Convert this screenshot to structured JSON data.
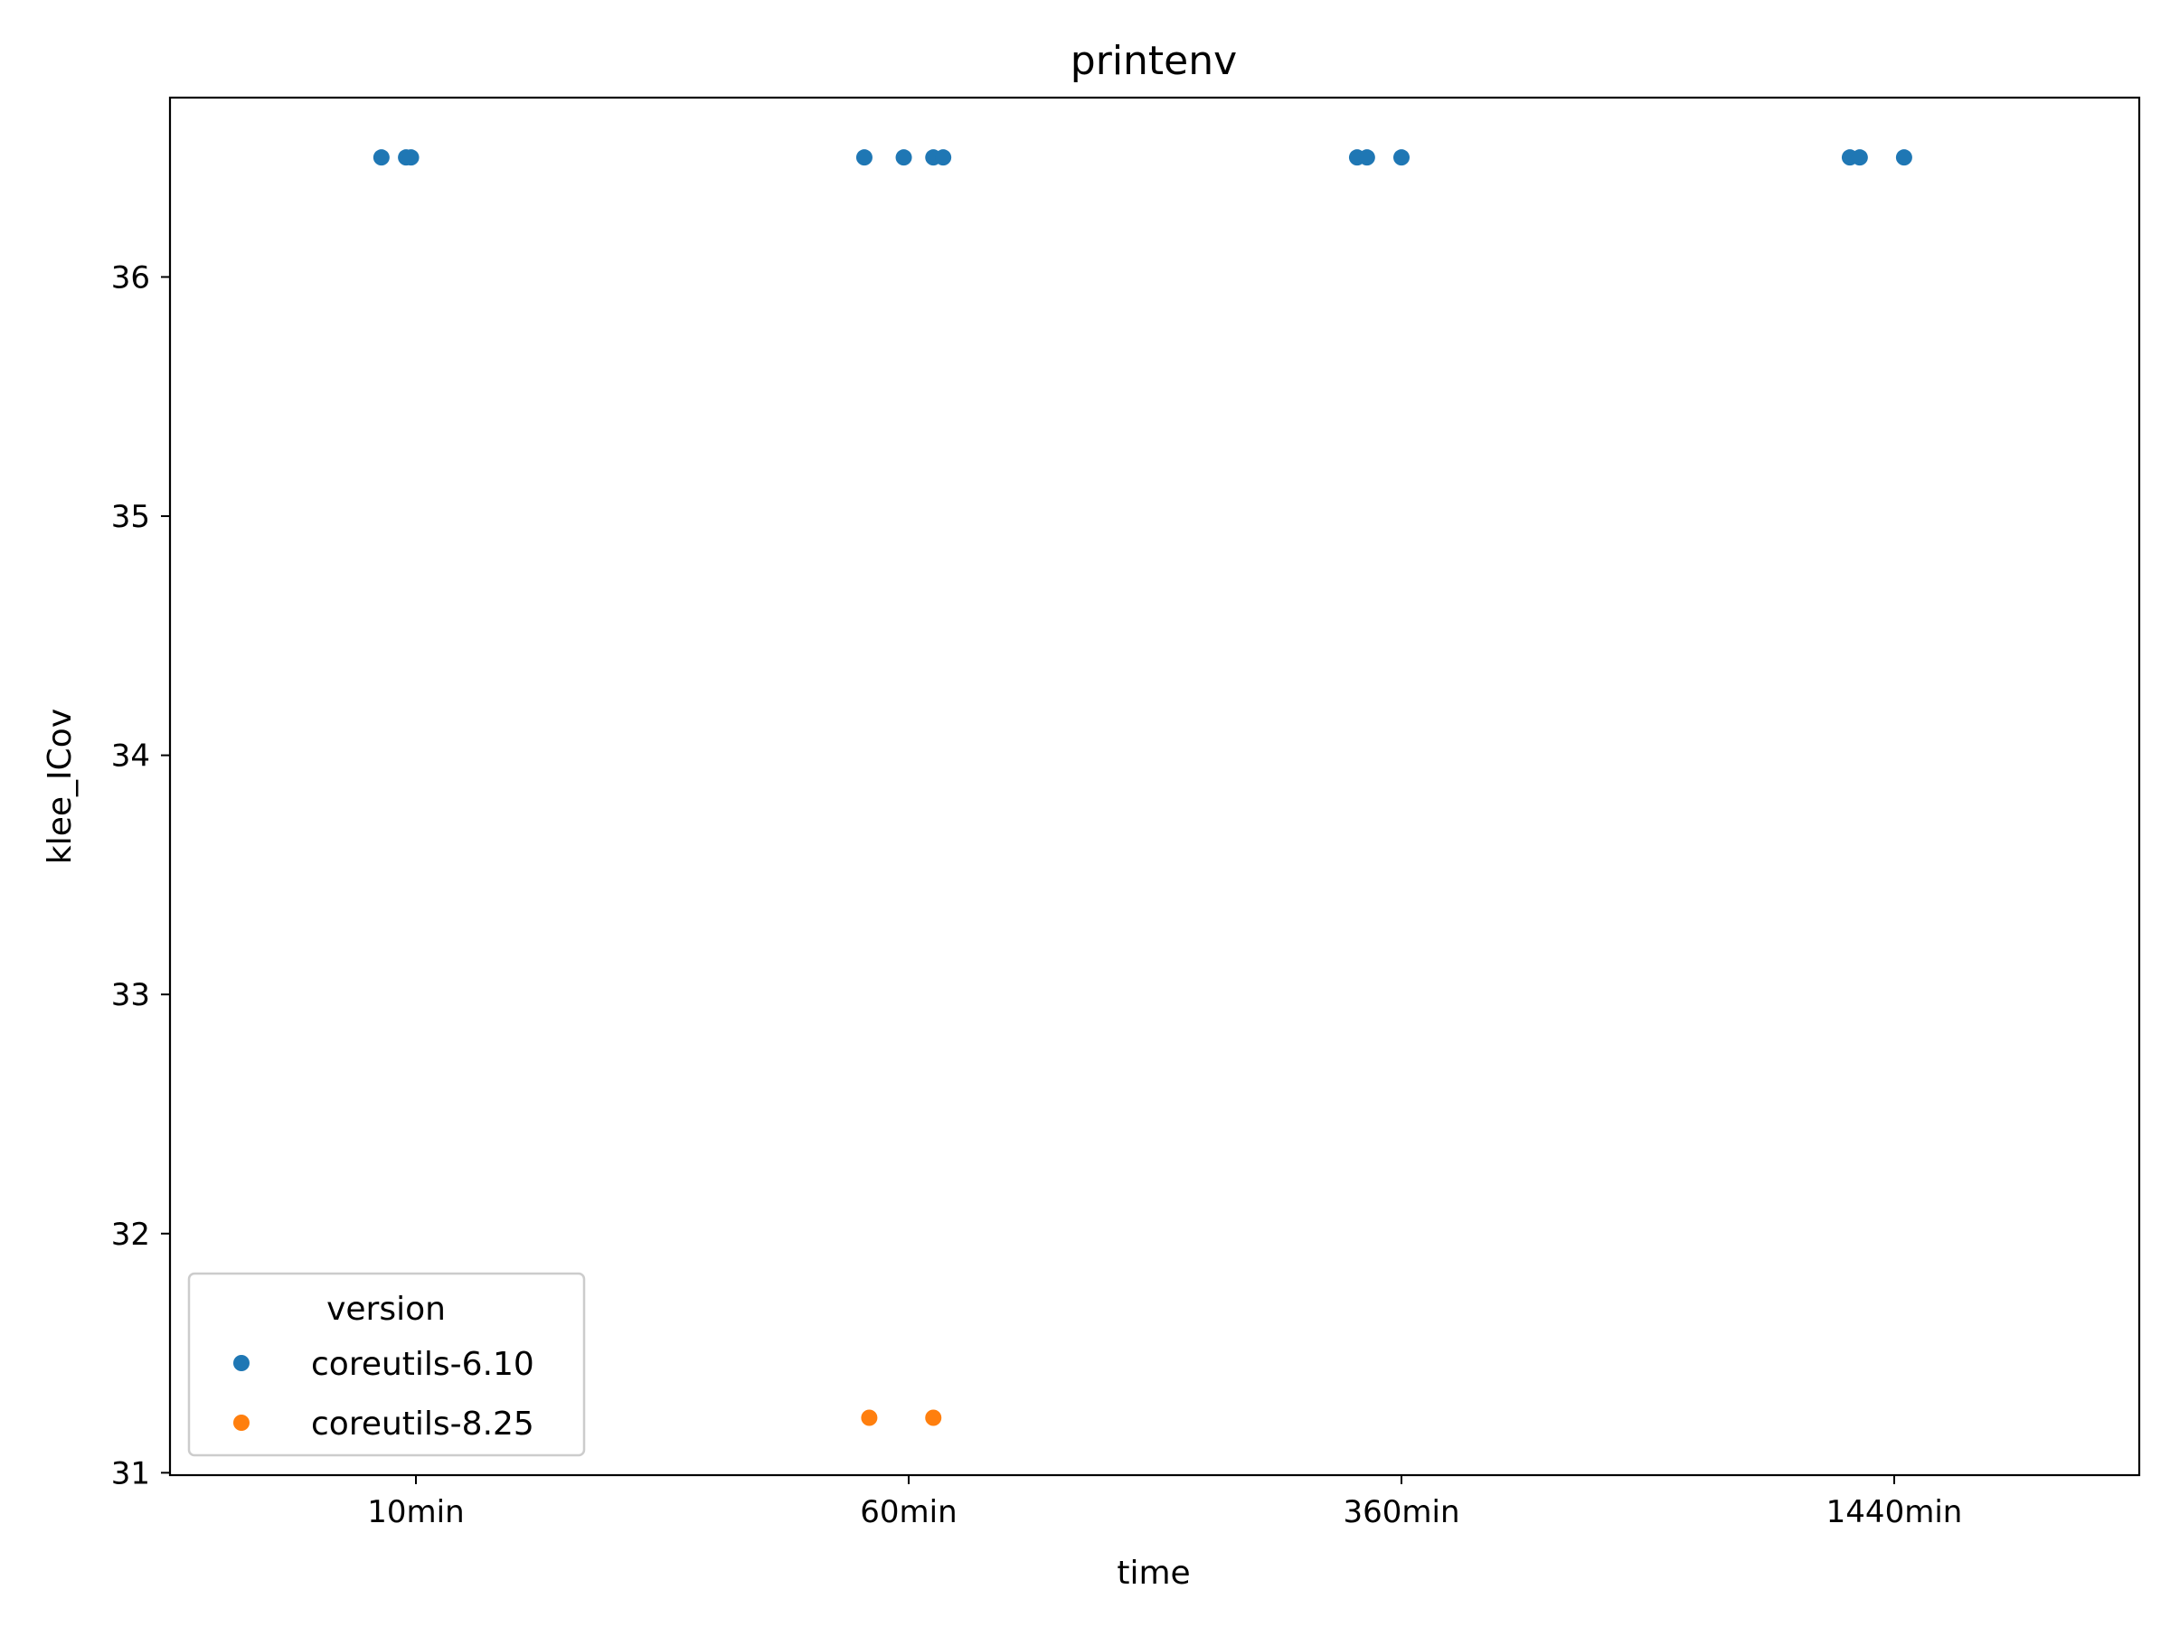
{
  "chart_data": {
    "type": "scatter",
    "title": "printenv",
    "xlabel": "time",
    "ylabel": "klee_ICov",
    "categories": [
      "10min",
      "60min",
      "360min",
      "1440min"
    ],
    "ylim": [
      30.99,
      36.75
    ],
    "yticks": [
      31,
      32,
      33,
      34,
      35,
      36
    ],
    "grid": false,
    "legend": {
      "title": "version",
      "placement": "lower-left"
    },
    "series": [
      {
        "name": "coreutils-6.10",
        "color": "#1f77b4",
        "points": [
          {
            "category": "10min",
            "jitter": -0.07,
            "y": 36.5
          },
          {
            "category": "10min",
            "jitter": -0.02,
            "y": 36.5
          },
          {
            "category": "10min",
            "jitter": -0.01,
            "y": 36.5
          },
          {
            "category": "60min",
            "jitter": -0.09,
            "y": 36.5
          },
          {
            "category": "60min",
            "jitter": -0.01,
            "y": 36.5
          },
          {
            "category": "60min",
            "jitter": 0.05,
            "y": 36.5
          },
          {
            "category": "60min",
            "jitter": 0.07,
            "y": 36.5
          },
          {
            "category": "360min",
            "jitter": -0.09,
            "y": 36.5
          },
          {
            "category": "360min",
            "jitter": -0.07,
            "y": 36.5
          },
          {
            "category": "360min",
            "jitter": 0.0,
            "y": 36.5
          },
          {
            "category": "1440min",
            "jitter": -0.09,
            "y": 36.5
          },
          {
            "category": "1440min",
            "jitter": -0.07,
            "y": 36.5
          },
          {
            "category": "1440min",
            "jitter": 0.02,
            "y": 36.5
          }
        ]
      },
      {
        "name": "coreutils-8.25",
        "color": "#ff7f0e",
        "points": [
          {
            "category": "60min",
            "jitter": -0.08,
            "y": 31.23
          },
          {
            "category": "60min",
            "jitter": 0.05,
            "y": 31.23
          }
        ]
      }
    ]
  }
}
